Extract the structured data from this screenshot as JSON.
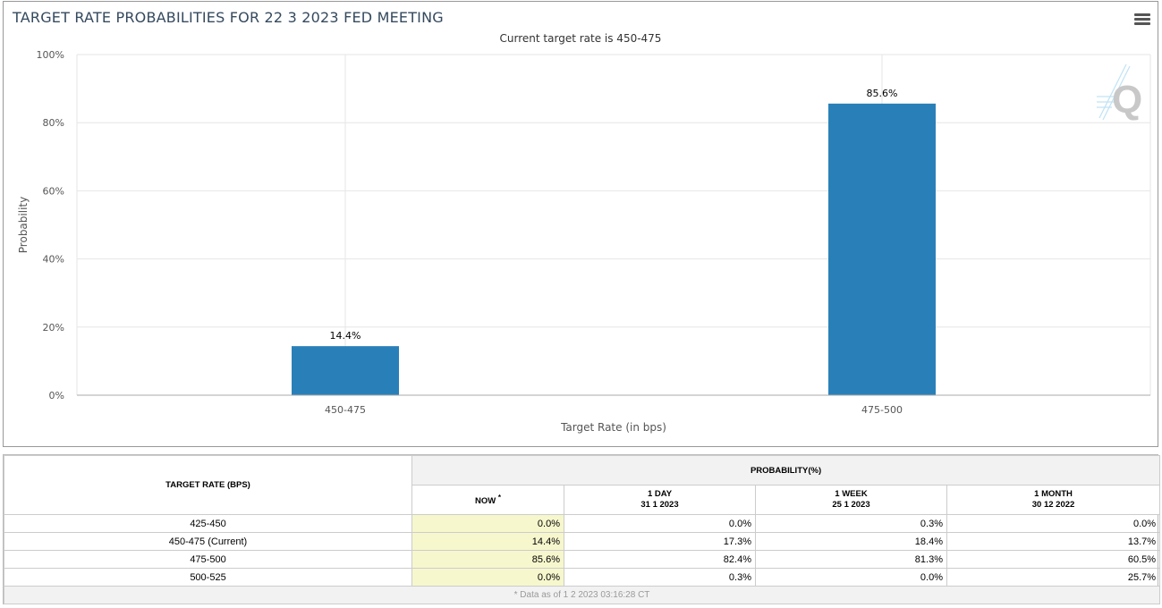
{
  "chart_data": {
    "type": "bar",
    "title": "TARGET RATE PROBABILITIES FOR 22 3 2023 FED MEETING",
    "subtitle": "Current target rate is 450-475",
    "categories": [
      "450-475",
      "475-500"
    ],
    "values": [
      14.4,
      85.6
    ],
    "data_labels": [
      "14.4%",
      "85.6%"
    ],
    "xlabel": "Target Rate (in bps)",
    "ylabel": "Probability",
    "ylim": [
      0,
      100
    ],
    "yticks": [
      0,
      20,
      40,
      60,
      80,
      100
    ],
    "ytick_labels": [
      "0%",
      "20%",
      "40%",
      "60%",
      "80%",
      "100%"
    ],
    "grid": true,
    "bar_color": "#2980b9"
  },
  "watermark_letter": "Q",
  "table": {
    "header_rate": "TARGET RATE (BPS)",
    "header_prob": "PROBABILITY(%)",
    "columns": [
      {
        "line1": "NOW",
        "line2": "",
        "star": "*"
      },
      {
        "line1": "1 DAY",
        "line2": "31 1 2023",
        "star": ""
      },
      {
        "line1": "1 WEEK",
        "line2": "25 1 2023",
        "star": ""
      },
      {
        "line1": "1 MONTH",
        "line2": "30 12 2022",
        "star": ""
      }
    ],
    "rows": [
      {
        "rate": "425-450",
        "values": [
          "0.0%",
          "0.0%",
          "0.3%",
          "0.0%"
        ]
      },
      {
        "rate": "450-475 (Current)",
        "values": [
          "14.4%",
          "17.3%",
          "18.4%",
          "13.7%"
        ]
      },
      {
        "rate": "475-500",
        "values": [
          "85.6%",
          "82.4%",
          "81.3%",
          "60.5%"
        ]
      },
      {
        "rate": "500-525",
        "values": [
          "0.0%",
          "0.3%",
          "0.0%",
          "25.7%"
        ]
      }
    ],
    "footnote": "* Data as of 1 2 2023 03:16:28 CT"
  }
}
